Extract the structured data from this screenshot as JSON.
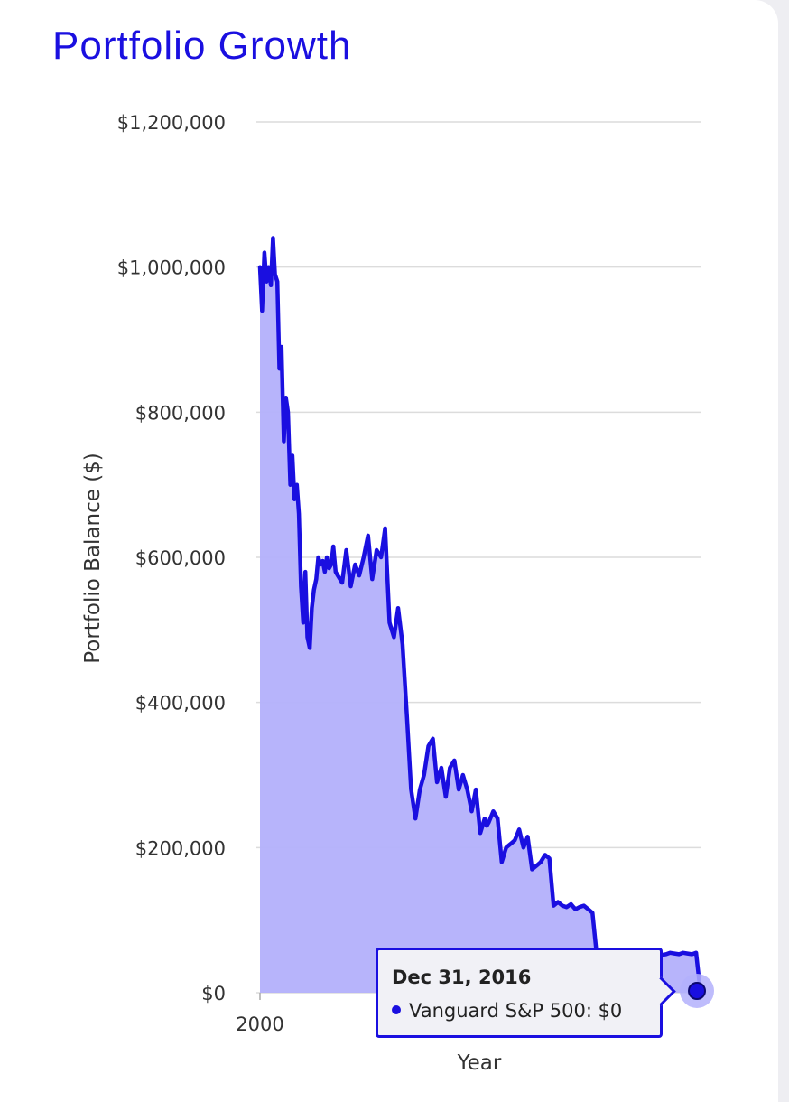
{
  "title": "Portfolio Growth",
  "colors": {
    "line": "#1a0fe0",
    "fill": "#b3b0fb",
    "grid": "#dcdcdc",
    "text": "#333333"
  },
  "tooltip": {
    "date": "Dec 31, 2016",
    "series_label": "Vanguard S&P 500: $0"
  },
  "chart_data": {
    "type": "area",
    "title": "",
    "xlabel": "Year",
    "ylabel": "Portfolio Balance ($)",
    "xlim": [
      2000,
      2017
    ],
    "ylim": [
      0,
      1200000
    ],
    "y_ticks": [
      {
        "value": 0,
        "label": "$0"
      },
      {
        "value": 200000,
        "label": "$200,000"
      },
      {
        "value": 400000,
        "label": "$400,000"
      },
      {
        "value": 600000,
        "label": "$600,000"
      },
      {
        "value": 800000,
        "label": "$800,000"
      },
      {
        "value": 1000000,
        "label": "$1,000,000"
      },
      {
        "value": 1200000,
        "label": "$1,200,000"
      }
    ],
    "x_ticks": [
      {
        "value": 2000,
        "label": "2000"
      },
      {
        "value": 2010,
        "label": "2010"
      }
    ],
    "grid": true,
    "legend": "none",
    "series": [
      {
        "name": "Vanguard S&P 500",
        "x": [
          2000.0,
          2000.08,
          2000.17,
          2000.25,
          2000.33,
          2000.42,
          2000.5,
          2000.58,
          2000.67,
          2000.75,
          2000.83,
          2000.92,
          2001.0,
          2001.08,
          2001.17,
          2001.25,
          2001.33,
          2001.42,
          2001.5,
          2001.58,
          2001.67,
          2001.75,
          2001.83,
          2001.92,
          2002.0,
          2002.08,
          2002.17,
          2002.25,
          2002.33,
          2002.42,
          2002.5,
          2002.58,
          2002.67,
          2002.75,
          2002.83,
          2002.92,
          2003.0,
          2003.17,
          2003.33,
          2003.5,
          2003.67,
          2003.83,
          2004.0,
          2004.17,
          2004.33,
          2004.5,
          2004.67,
          2004.83,
          2005.0,
          2005.17,
          2005.33,
          2005.5,
          2005.67,
          2005.83,
          2006.0,
          2006.17,
          2006.33,
          2006.5,
          2006.67,
          2006.83,
          2007.0,
          2007.17,
          2007.33,
          2007.5,
          2007.67,
          2007.83,
          2008.0,
          2008.17,
          2008.33,
          2008.5,
          2008.67,
          2008.75,
          2008.83,
          2009.0,
          2009.17,
          2009.33,
          2009.5,
          2009.67,
          2009.83,
          2010.0,
          2010.17,
          2010.33,
          2010.5,
          2010.67,
          2010.83,
          2011.0,
          2011.17,
          2011.33,
          2011.5,
          2011.67,
          2011.83,
          2012.0,
          2012.17,
          2012.33,
          2012.5,
          2012.67,
          2012.83,
          2013.0,
          2013.17,
          2013.33,
          2013.5,
          2013.67,
          2013.83,
          2014.0,
          2014.17,
          2014.33,
          2014.5,
          2014.67,
          2014.83,
          2015.0,
          2015.17,
          2015.33,
          2015.5,
          2015.67,
          2015.83,
          2016.0,
          2016.17,
          2016.33,
          2016.5,
          2016.67,
          2016.83,
          2017.0
        ],
        "values": [
          1000000,
          940000,
          1020000,
          980000,
          1000000,
          975000,
          1040000,
          990000,
          980000,
          860000,
          890000,
          760000,
          820000,
          800000,
          700000,
          740000,
          680000,
          700000,
          660000,
          560000,
          510000,
          580000,
          490000,
          475000,
          530000,
          555000,
          570000,
          600000,
          590000,
          595000,
          580000,
          600000,
          585000,
          590000,
          615000,
          580000,
          575000,
          565000,
          610000,
          560000,
          590000,
          575000,
          600000,
          630000,
          570000,
          610000,
          600000,
          640000,
          510000,
          490000,
          530000,
          480000,
          380000,
          280000,
          240000,
          280000,
          300000,
          340000,
          350000,
          290000,
          310000,
          270000,
          310000,
          320000,
          280000,
          300000,
          280000,
          250000,
          280000,
          220000,
          240000,
          230000,
          235000,
          250000,
          240000,
          180000,
          200000,
          205000,
          210000,
          225000,
          200000,
          215000,
          170000,
          175000,
          180000,
          190000,
          185000,
          120000,
          125000,
          120000,
          118000,
          122000,
          115000,
          118000,
          120000,
          115000,
          110000,
          50000,
          52000,
          53000,
          51000,
          54000,
          52000,
          55000,
          53000,
          56000,
          54000,
          55000,
          52000,
          53000,
          54000,
          55000,
          52000,
          53000,
          55000,
          54000,
          53000,
          55000,
          54000,
          53000,
          55000,
          0
        ]
      }
    ]
  }
}
